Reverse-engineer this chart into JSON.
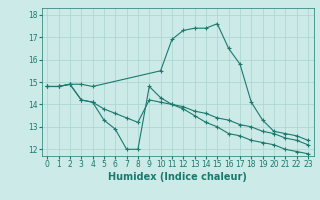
{
  "bg_color": "#cceae7",
  "grid_color": "#aad4d0",
  "line_color": "#1a7a6e",
  "xlabel": "Humidex (Indice chaleur)",
  "xlabel_fontsize": 7,
  "xlabel_fontweight": "bold",
  "ylim": [
    11.7,
    18.3
  ],
  "xlim": [
    -0.5,
    23.5
  ],
  "yticks": [
    12,
    13,
    14,
    15,
    16,
    17,
    18
  ],
  "xticks": [
    0,
    1,
    2,
    3,
    4,
    5,
    6,
    7,
    8,
    9,
    10,
    11,
    12,
    13,
    14,
    15,
    16,
    17,
    18,
    19,
    20,
    21,
    22,
    23
  ],
  "tick_fontsize": 5.5,
  "line1_x": [
    0,
    1,
    2,
    3,
    4,
    10,
    11,
    12,
    13,
    14,
    15,
    16,
    17,
    18,
    19,
    20,
    21,
    22,
    23
  ],
  "line1_y": [
    14.8,
    14.8,
    14.9,
    14.9,
    14.8,
    15.5,
    16.9,
    17.3,
    17.4,
    17.4,
    17.6,
    16.5,
    15.8,
    14.1,
    13.3,
    12.8,
    12.7,
    12.6,
    12.4
  ],
  "line2_x": [
    0,
    1,
    2,
    3,
    4,
    5,
    6,
    7,
    8,
    9,
    10,
    11,
    12,
    13,
    14,
    15,
    16,
    17,
    18,
    19,
    20,
    21,
    22,
    23
  ],
  "line2_y": [
    14.8,
    14.8,
    14.9,
    14.2,
    14.1,
    13.3,
    12.9,
    12.0,
    12.0,
    14.8,
    14.3,
    14.0,
    13.8,
    13.5,
    13.2,
    13.0,
    12.7,
    12.6,
    12.4,
    12.3,
    12.2,
    12.0,
    11.9,
    11.8
  ],
  "line3_x": [
    0,
    1,
    2,
    3,
    4,
    5,
    6,
    7,
    8,
    9,
    10,
    11,
    12,
    13,
    14,
    15,
    16,
    17,
    18,
    19,
    20,
    21,
    22,
    23
  ],
  "line3_y": [
    14.8,
    14.8,
    14.9,
    14.2,
    14.1,
    13.8,
    13.6,
    13.4,
    13.2,
    14.2,
    14.1,
    14.0,
    13.9,
    13.7,
    13.6,
    13.4,
    13.3,
    13.1,
    13.0,
    12.8,
    12.7,
    12.5,
    12.4,
    12.2
  ],
  "linewidth": 0.8,
  "markersize": 3,
  "markeredgewidth": 0.8
}
